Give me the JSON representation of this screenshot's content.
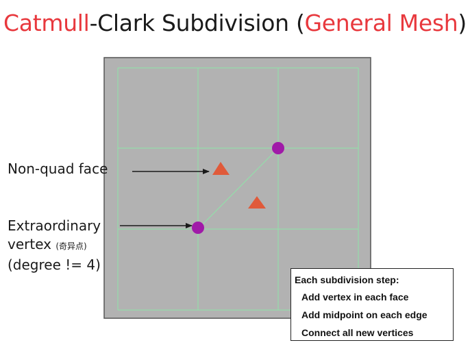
{
  "title": {
    "part1": "Catmull",
    "part2": "-Clark Subdivision (",
    "part3": "General Mesh",
    "part4": ")"
  },
  "colors": {
    "accent": "#e8383d",
    "mesh_fill": "#b2b2b2",
    "mesh_border": "#555555",
    "grid_line": "#8ee6a8",
    "vertex": "#a01aa8",
    "triangle": "#e05a3a"
  },
  "labels": {
    "nonquad": "Non-quad face",
    "extra_line1": "Extraordinary",
    "extra_line2": "vertex",
    "extra_cjk": "(奇异点)",
    "extra_line3": "(degree != 4)"
  },
  "step_box": {
    "heading": "Each subdivision step:",
    "items": [
      "Add vertex in each face",
      "Add midpoint on each edge",
      "Connect all new vertices"
    ]
  }
}
